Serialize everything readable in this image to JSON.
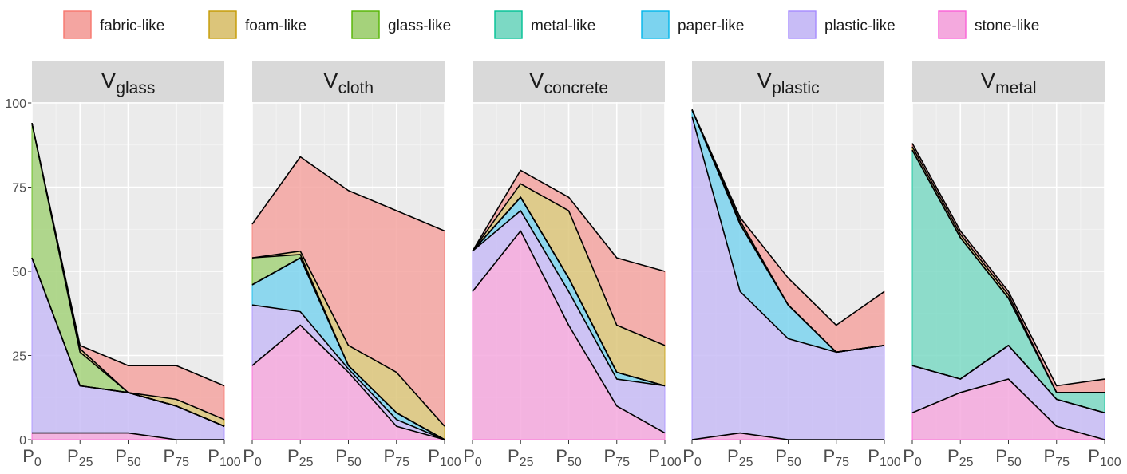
{
  "chart_data": {
    "type": "area",
    "stacked": true,
    "legend_position": "top",
    "grid": true,
    "ylim": [
      0,
      100
    ],
    "y_ticks": [
      0,
      25,
      50,
      75,
      100
    ],
    "categories": [
      {
        "base": "P",
        "sub": "0"
      },
      {
        "base": "P",
        "sub": "25"
      },
      {
        "base": "P",
        "sub": "50"
      },
      {
        "base": "P",
        "sub": "75"
      },
      {
        "base": "P",
        "sub": "100"
      }
    ],
    "legend": [
      {
        "name": "fabric-like",
        "fill": "#F4A5A1",
        "stroke": "#F8766D"
      },
      {
        "name": "foam-like",
        "fill": "#DCC57A",
        "stroke": "#C49A00"
      },
      {
        "name": "glass-like",
        "fill": "#A5D27B",
        "stroke": "#53B400"
      },
      {
        "name": "metal-like",
        "fill": "#7CD9C4",
        "stroke": "#00C094"
      },
      {
        "name": "paper-like",
        "fill": "#7CD3EF",
        "stroke": "#00B6EB"
      },
      {
        "name": "plastic-like",
        "fill": "#C8BCF6",
        "stroke": "#A58AFF"
      },
      {
        "name": "stone-like",
        "fill": "#F4A9DE",
        "stroke": "#FB61D7"
      }
    ],
    "panels": [
      {
        "title_base": "V",
        "title_sub": "glass",
        "series": [
          {
            "name": "stone-like",
            "values": [
              2,
              2,
              2,
              0,
              0
            ]
          },
          {
            "name": "plastic-like",
            "values": [
              52,
              14,
              12,
              10,
              4
            ]
          },
          {
            "name": "paper-like",
            "values": [
              0,
              0,
              0,
              0,
              0
            ]
          },
          {
            "name": "metal-like",
            "values": [
              0,
              0,
              0,
              0,
              0
            ]
          },
          {
            "name": "glass-like",
            "values": [
              40,
              10,
              0,
              0,
              0
            ]
          },
          {
            "name": "foam-like",
            "values": [
              0,
              1,
              0,
              2,
              2
            ]
          },
          {
            "name": "fabric-like",
            "values": [
              0,
              1,
              8,
              10,
              10
            ]
          }
        ]
      },
      {
        "title_base": "V",
        "title_sub": "cloth",
        "series": [
          {
            "name": "stone-like",
            "values": [
              22,
              34,
              20,
              4,
              0
            ]
          },
          {
            "name": "plastic-like",
            "values": [
              18,
              4,
              1,
              2,
              0
            ]
          },
          {
            "name": "paper-like",
            "values": [
              6,
              16,
              1,
              2,
              0
            ]
          },
          {
            "name": "metal-like",
            "values": [
              0,
              0,
              0,
              0,
              0
            ]
          },
          {
            "name": "glass-like",
            "values": [
              8,
              1,
              0,
              0,
              0
            ]
          },
          {
            "name": "foam-like",
            "values": [
              0,
              1,
              6,
              12,
              4
            ]
          },
          {
            "name": "fabric-like",
            "values": [
              10,
              28,
              46,
              48,
              58
            ]
          }
        ]
      },
      {
        "title_base": "V",
        "title_sub": "concrete",
        "series": [
          {
            "name": "stone-like",
            "values": [
              44,
              62,
              34,
              10,
              2
            ]
          },
          {
            "name": "plastic-like",
            "values": [
              12,
              6,
              10,
              8,
              14
            ]
          },
          {
            "name": "paper-like",
            "values": [
              0,
              4,
              4,
              2,
              0
            ]
          },
          {
            "name": "metal-like",
            "values": [
              0,
              0,
              0,
              0,
              0
            ]
          },
          {
            "name": "glass-like",
            "values": [
              0,
              0,
              0,
              0,
              0
            ]
          },
          {
            "name": "foam-like",
            "values": [
              0,
              4,
              20,
              14,
              12
            ]
          },
          {
            "name": "fabric-like",
            "values": [
              0,
              4,
              4,
              20,
              22
            ]
          }
        ]
      },
      {
        "title_base": "V",
        "title_sub": "plastic",
        "series": [
          {
            "name": "stone-like",
            "values": [
              0,
              2,
              0,
              0,
              0
            ]
          },
          {
            "name": "plastic-like",
            "values": [
              96,
              42,
              30,
              26,
              28
            ]
          },
          {
            "name": "paper-like",
            "values": [
              2,
              20,
              10,
              0,
              0
            ]
          },
          {
            "name": "metal-like",
            "values": [
              0,
              0,
              0,
              0,
              0
            ]
          },
          {
            "name": "glass-like",
            "values": [
              0,
              0,
              0,
              0,
              0
            ]
          },
          {
            "name": "foam-like",
            "values": [
              0,
              1,
              0,
              0,
              0
            ]
          },
          {
            "name": "fabric-like",
            "values": [
              0,
              1,
              8,
              8,
              16
            ]
          }
        ]
      },
      {
        "title_base": "V",
        "title_sub": "metal",
        "series": [
          {
            "name": "stone-like",
            "values": [
              8,
              14,
              18,
              4,
              0
            ]
          },
          {
            "name": "plastic-like",
            "values": [
              14,
              4,
              10,
              8,
              8
            ]
          },
          {
            "name": "paper-like",
            "values": [
              0,
              0,
              0,
              0,
              0
            ]
          },
          {
            "name": "metal-like",
            "values": [
              64,
              42,
              14,
              2,
              6
            ]
          },
          {
            "name": "glass-like",
            "values": [
              0,
              0,
              0,
              0,
              0
            ]
          },
          {
            "name": "foam-like",
            "values": [
              1,
              1,
              1,
              0,
              0
            ]
          },
          {
            "name": "fabric-like",
            "values": [
              1,
              1,
              1,
              2,
              4
            ]
          }
        ]
      }
    ]
  }
}
